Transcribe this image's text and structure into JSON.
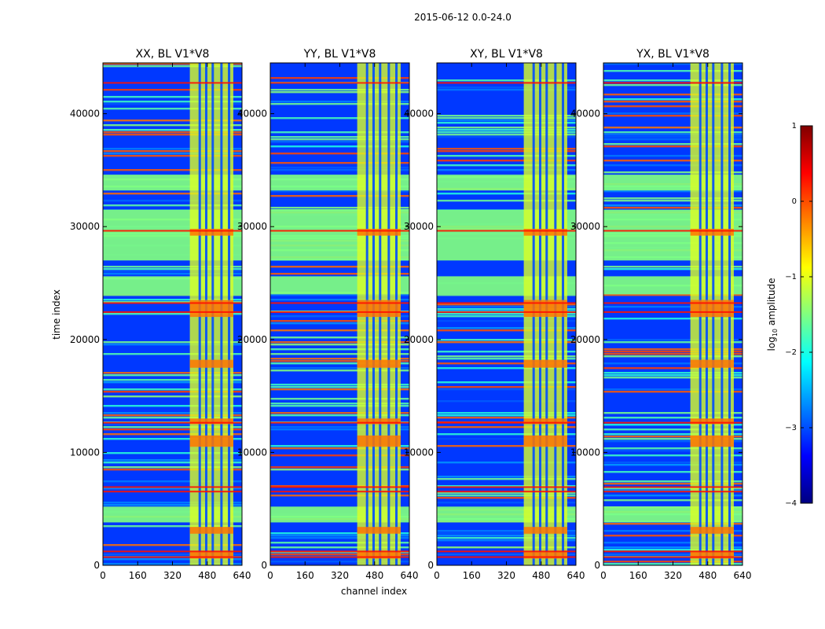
{
  "figure": {
    "title": "2015-06-12 0.0-24.0",
    "xlabel": "channel index",
    "ylabel": "time index"
  },
  "colorbar": {
    "label_prefix": "log",
    "label_sub": "10",
    "label_suffix": " amplitude",
    "ticks": [
      1,
      0,
      -1,
      -2,
      -3,
      -4
    ],
    "tick_labels": [
      "1",
      "0",
      "−1",
      "−2",
      "−3",
      "−4"
    ],
    "colormap": "jet",
    "colors": [
      "#000080",
      "#0000ff",
      "#0080ff",
      "#00ffff",
      "#80ff80",
      "#ffff00",
      "#ff8000",
      "#ff0000",
      "#800000"
    ]
  },
  "chart_data": [
    {
      "type": "heatmap",
      "title": "XX, BL V1*V8",
      "xticks": [
        0,
        160,
        320,
        480,
        640
      ],
      "yticks": [
        0,
        10000,
        20000,
        30000,
        40000
      ],
      "xlim": [
        0,
        640
      ],
      "ylim": [
        0,
        44500
      ],
      "zlim": [
        -4,
        1
      ],
      "grid": false
    },
    {
      "type": "heatmap",
      "title": "YY, BL V1*V8",
      "xticks": [
        0,
        160,
        320,
        480,
        640
      ],
      "yticks": [
        0,
        10000,
        20000,
        30000,
        40000
      ],
      "xlim": [
        0,
        640
      ],
      "ylim": [
        0,
        44500
      ],
      "zlim": [
        -4,
        1
      ],
      "grid": false
    },
    {
      "type": "heatmap",
      "title": "XY, BL V1*V8",
      "xticks": [
        0,
        160,
        320,
        480,
        640
      ],
      "yticks": [
        0,
        10000,
        20000,
        30000,
        40000
      ],
      "xlim": [
        0,
        640
      ],
      "ylim": [
        0,
        44500
      ],
      "zlim": [
        -4,
        1
      ],
      "grid": false
    },
    {
      "type": "heatmap",
      "title": "YX, BL V1*V8",
      "xticks": [
        0,
        160,
        320,
        480,
        640
      ],
      "yticks": [
        0,
        10000,
        20000,
        30000,
        40000
      ],
      "xlim": [
        0,
        640
      ],
      "ylim": [
        0,
        44500
      ],
      "zlim": [
        -4,
        1
      ],
      "grid": false
    }
  ]
}
